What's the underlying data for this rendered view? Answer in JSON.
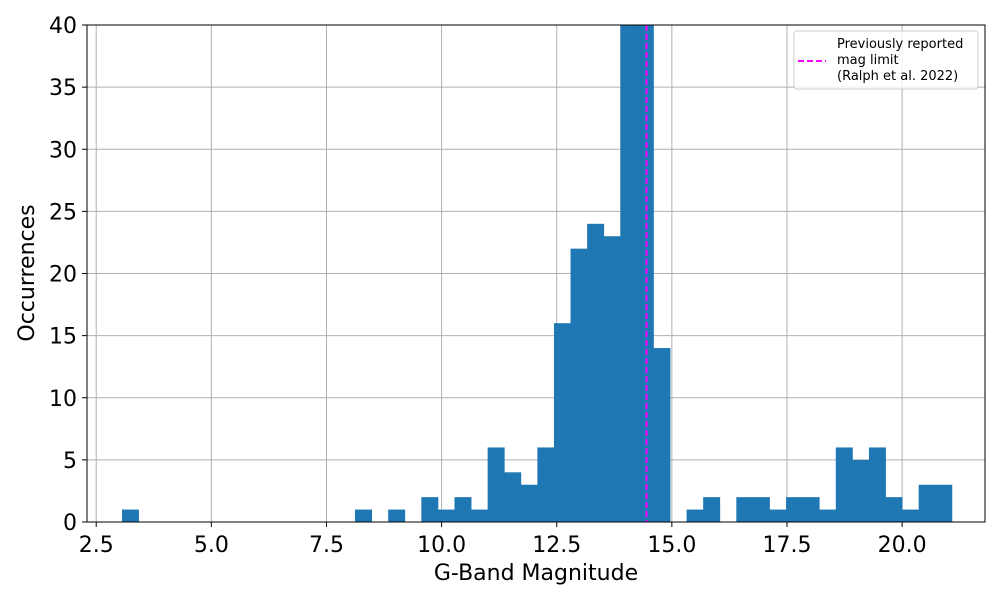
{
  "chart_data": {
    "type": "bar",
    "title": "",
    "xlabel": "G-Band Magnitude",
    "ylabel": "Occurrences",
    "xlim": [
      2.3,
      21.8
    ],
    "ylim": [
      0,
      40
    ],
    "grid": true,
    "x_ticks": [
      2.5,
      5.0,
      7.5,
      10.0,
      12.5,
      15.0,
      17.5,
      20.0
    ],
    "x_tick_labels": [
      "2.5",
      "5.0",
      "7.5",
      "10.0",
      "12.5",
      "15.0",
      "17.5",
      "20.0"
    ],
    "y_ticks": [
      0,
      5,
      10,
      15,
      20,
      25,
      30,
      35,
      40
    ],
    "y_tick_labels": [
      "0",
      "5",
      "10",
      "15",
      "20",
      "25",
      "30",
      "35",
      "40"
    ],
    "bar_color": "#1f77b4",
    "bin_width": 0.36,
    "bins": [
      {
        "x0": 3.06,
        "value": 1
      },
      {
        "x0": 8.12,
        "value": 1
      },
      {
        "x0": 8.84,
        "value": 1
      },
      {
        "x0": 9.56,
        "value": 2
      },
      {
        "x0": 9.92,
        "value": 1
      },
      {
        "x0": 10.28,
        "value": 2
      },
      {
        "x0": 10.64,
        "value": 1
      },
      {
        "x0": 11.0,
        "value": 6
      },
      {
        "x0": 11.36,
        "value": 4
      },
      {
        "x0": 11.72,
        "value": 3
      },
      {
        "x0": 12.08,
        "value": 6
      },
      {
        "x0": 12.44,
        "value": 16
      },
      {
        "x0": 12.8,
        "value": 22
      },
      {
        "x0": 13.16,
        "value": 24
      },
      {
        "x0": 13.52,
        "value": 23
      },
      {
        "x0": 13.88,
        "value": 40
      },
      {
        "x0": 14.24,
        "value": 40
      },
      {
        "x0": 14.6,
        "value": 14
      },
      {
        "x0": 15.32,
        "value": 1
      },
      {
        "x0": 15.68,
        "value": 2
      },
      {
        "x0": 16.4,
        "value": 2
      },
      {
        "x0": 16.76,
        "value": 2
      },
      {
        "x0": 17.12,
        "value": 1
      },
      {
        "x0": 17.48,
        "value": 2
      },
      {
        "x0": 17.84,
        "value": 2
      },
      {
        "x0": 18.2,
        "value": 1
      },
      {
        "x0": 18.56,
        "value": 6
      },
      {
        "x0": 18.92,
        "value": 5
      },
      {
        "x0": 19.28,
        "value": 6
      },
      {
        "x0": 19.64,
        "value": 2
      },
      {
        "x0": 20.0,
        "value": 1
      },
      {
        "x0": 20.36,
        "value": 3
      },
      {
        "x0": 20.72,
        "value": 3
      }
    ],
    "reference_line": {
      "x": 14.45,
      "color": "#ff00ff",
      "style": "dashed",
      "label_lines": [
        "Previously reported",
        "mag limit",
        "(Ralph et al. 2022)"
      ]
    },
    "legend": {
      "placement": "top-right"
    }
  }
}
